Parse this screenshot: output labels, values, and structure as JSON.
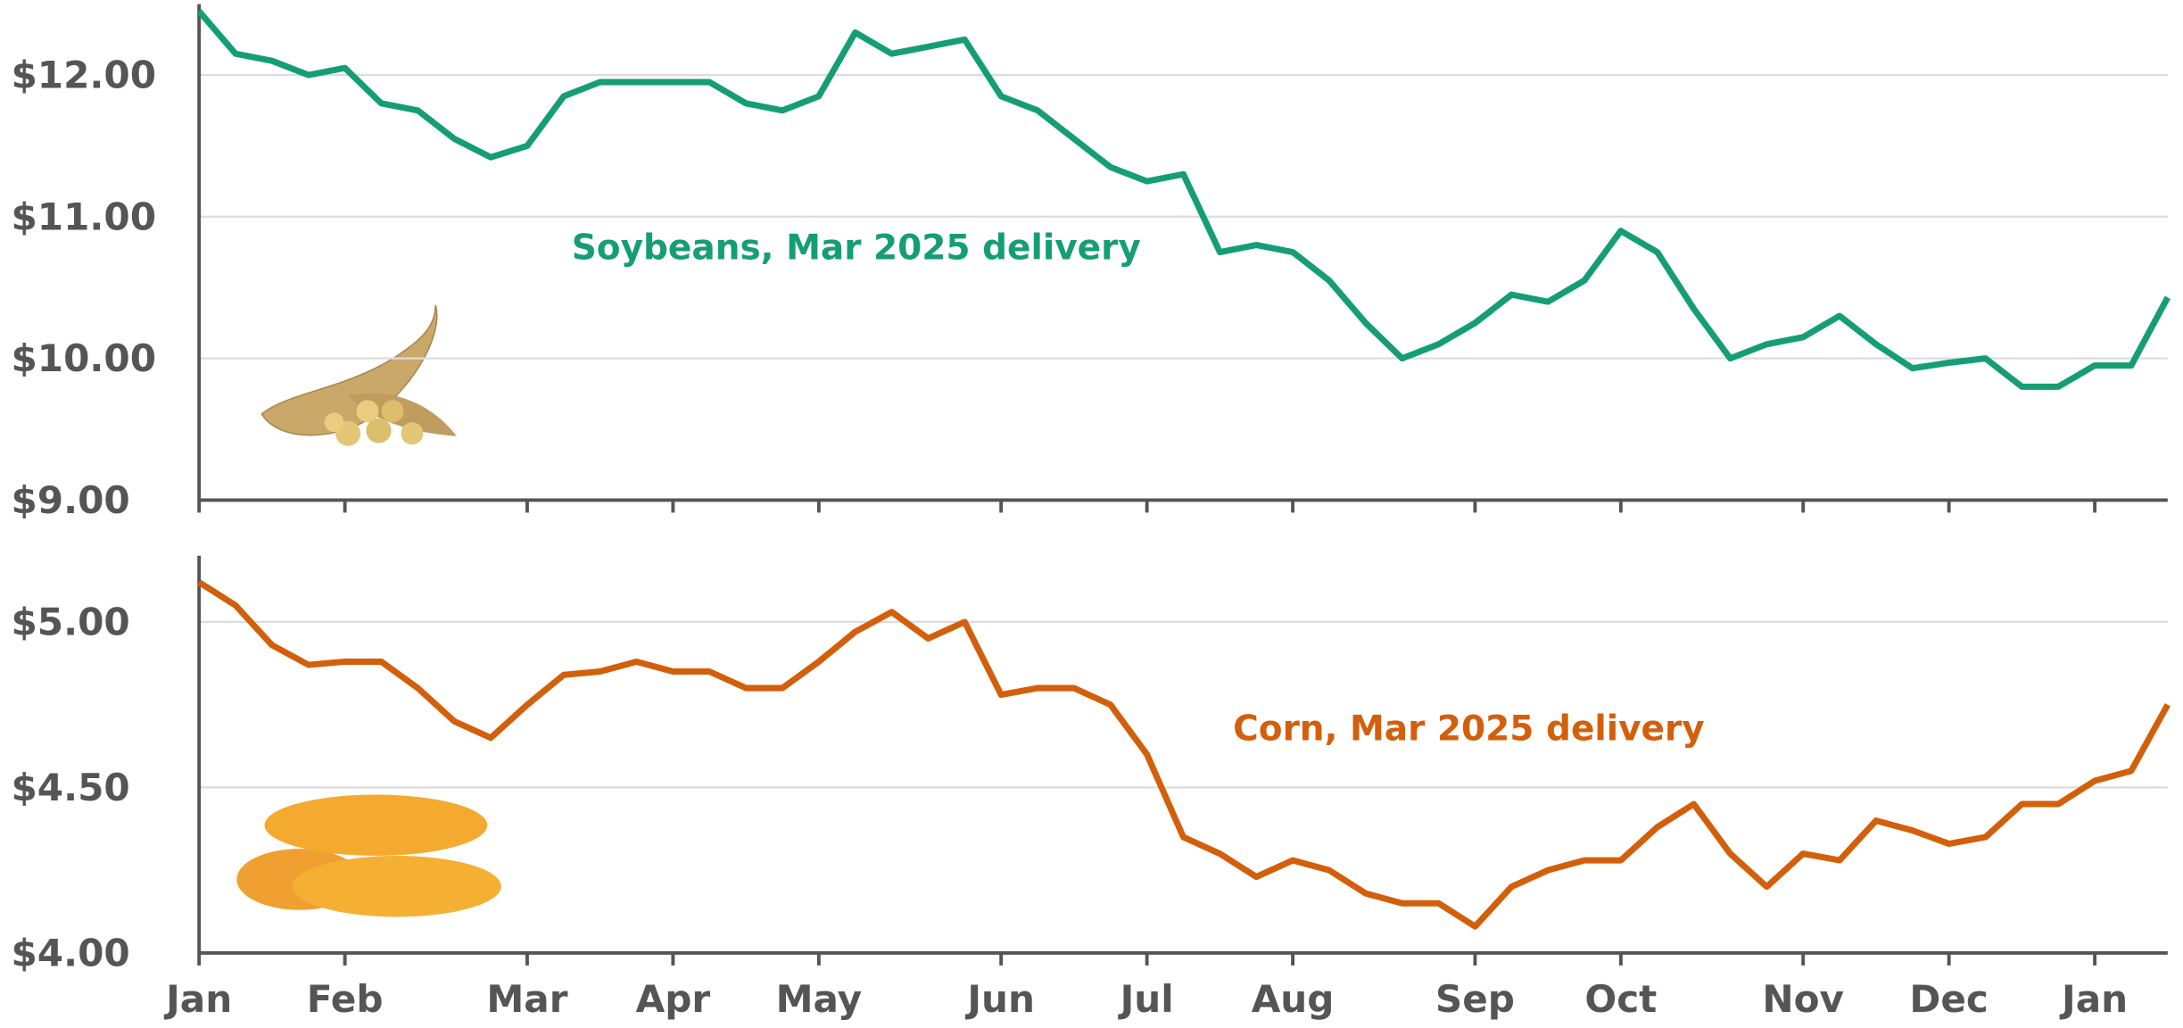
{
  "chart_data": [
    {
      "type": "line",
      "annotation": "Soybeans, Mar 2025 delivery",
      "color": "#159e75",
      "values": [
        12.45,
        12.15,
        12.1,
        12.0,
        12.05,
        11.8,
        11.75,
        11.55,
        11.42,
        11.5,
        11.85,
        11.95,
        11.95,
        11.95,
        11.95,
        11.8,
        11.75,
        11.85,
        12.3,
        12.15,
        12.2,
        12.25,
        11.85,
        11.75,
        11.55,
        11.35,
        11.25,
        11.3,
        10.75,
        10.8,
        10.75,
        10.55,
        10.25,
        10.0,
        10.1,
        10.25,
        10.45,
        10.4,
        10.55,
        10.9,
        10.75,
        10.35,
        10.0,
        10.1,
        10.15,
        10.3,
        10.1,
        9.93,
        9.97,
        10.0,
        9.8,
        9.8,
        9.95,
        9.95,
        10.43
      ],
      "ylim": [
        9,
        12.5
      ],
      "yticks": [
        {
          "value": 9,
          "label": "$9.00"
        },
        {
          "value": 10,
          "label": "$10.00"
        },
        {
          "value": 11,
          "label": "$11.00"
        },
        {
          "value": 12,
          "label": "$12.00"
        }
      ],
      "grid": true
    },
    {
      "type": "line",
      "annotation": "Corn, Mar 2025 delivery",
      "color": "#d35f0b",
      "categories": [
        "Jan",
        null,
        null,
        null,
        "Feb",
        null,
        null,
        null,
        null,
        "Mar",
        null,
        null,
        null,
        "Apr",
        null,
        null,
        null,
        "May",
        null,
        null,
        null,
        null,
        "Jun",
        null,
        null,
        null,
        "Jul",
        null,
        null,
        null,
        "Aug",
        null,
        null,
        null,
        null,
        "Sep",
        null,
        null,
        null,
        "Oct",
        null,
        null,
        null,
        null,
        "Nov",
        null,
        null,
        null,
        "Dec",
        null,
        null,
        null,
        "Jan",
        null,
        null
      ],
      "values": [
        5.12,
        5.05,
        4.93,
        4.87,
        4.88,
        4.88,
        4.8,
        4.7,
        4.65,
        4.75,
        4.84,
        4.85,
        4.88,
        4.85,
        4.85,
        4.8,
        4.8,
        4.88,
        4.97,
        5.03,
        4.95,
        5.0,
        4.78,
        4.8,
        4.8,
        4.75,
        4.6,
        4.35,
        4.3,
        4.23,
        4.28,
        4.25,
        4.18,
        4.15,
        4.15,
        4.08,
        4.2,
        4.25,
        4.28,
        4.28,
        4.38,
        4.45,
        4.3,
        4.2,
        4.3,
        4.28,
        4.4,
        4.37,
        4.33,
        4.35,
        4.45,
        4.45,
        4.52,
        4.55,
        4.75
      ],
      "ylim": [
        4,
        5.2
      ],
      "yticks": [
        {
          "value": 4,
          "label": "$4.00"
        },
        {
          "value": 4.5,
          "label": "$4.50"
        },
        {
          "value": 5,
          "label": "$5.00"
        }
      ],
      "grid": true
    }
  ]
}
